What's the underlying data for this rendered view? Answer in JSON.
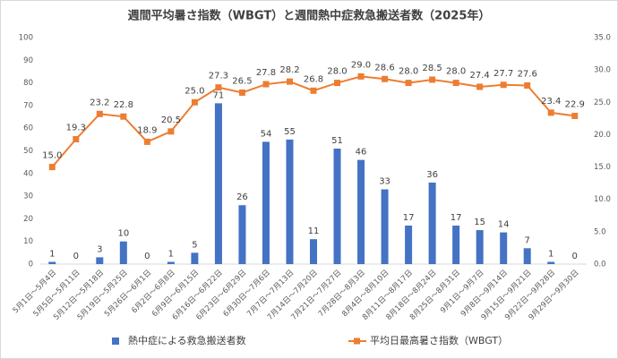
{
  "chart_data": {
    "type": "combo",
    "title": "週間平均暑さ指数（WBGT）と週間熱中症救急搬送者数（2025年）",
    "categories": [
      "5月1日～5月4日",
      "5月5日～5月11日",
      "5月12日～5月18日",
      "5月19日～5月25日",
      "5月26日～6月1日",
      "6月2日～6月8日",
      "6月9日～6月15日",
      "6月16日～6月22日",
      "6月23日～6月29日",
      "6月30日～7月6日",
      "7月7日～7月13日",
      "7月14日～7月20日",
      "7月21日～7月27日",
      "7月28日～8月3日",
      "8月4日～8月10日",
      "8月11日～8月17日",
      "8月18日～8月24日",
      "8月25日～8月31日",
      "9月1日～9月7日",
      "9月8日～9月14日",
      "9月15日～9月21日",
      "9月22日～9月28日",
      "9月29日～9月30日"
    ],
    "series": [
      {
        "name": "熱中症による救急搬送者数",
        "type": "bar",
        "color": "#4472c4",
        "values": [
          1,
          0,
          3,
          10,
          0,
          1,
          5,
          71,
          26,
          54,
          55,
          11,
          51,
          46,
          33,
          17,
          36,
          17,
          15,
          14,
          7,
          1,
          0
        ]
      },
      {
        "name": "平均日最高暑さ指数（WBGT）",
        "type": "line",
        "color": "#ed7d31",
        "axis": "y2",
        "values": [
          15.0,
          19.3,
          23.2,
          22.8,
          18.9,
          20.5,
          25.0,
          27.3,
          26.5,
          27.8,
          28.2,
          26.8,
          28.0,
          29.0,
          28.6,
          28.0,
          28.5,
          28.0,
          27.4,
          27.7,
          27.6,
          23.4,
          22.9
        ],
        "value_labels": [
          "15.0",
          "19.3",
          "23.2",
          "22.8",
          "18.9",
          "20.5",
          "25.0",
          "27.3",
          "26.5",
          "27.8",
          "28.2",
          "26.8",
          "28.0",
          "29.0",
          "28.6",
          "28.0",
          "28.5",
          "28.0",
          "27.4",
          "27.7",
          "27.6",
          "23.4",
          "22.9"
        ]
      }
    ],
    "ylim": [
      0,
      100
    ],
    "yticks": [
      0,
      10,
      20,
      30,
      40,
      50,
      60,
      70,
      80,
      90,
      100
    ],
    "y2lim": [
      0,
      35
    ],
    "y2ticks": [
      {
        "value": 0,
        "label": "0.0"
      },
      {
        "value": 5,
        "label": "5.0"
      },
      {
        "value": 10,
        "label": "10.0"
      },
      {
        "value": 15,
        "label": "15.0"
      },
      {
        "value": 20,
        "label": "20.0"
      },
      {
        "value": 25,
        "label": "25.0"
      },
      {
        "value": 30,
        "label": "30.0"
      },
      {
        "value": 35,
        "label": "35.0"
      }
    ],
    "grid": false,
    "legend": "bottom"
  }
}
